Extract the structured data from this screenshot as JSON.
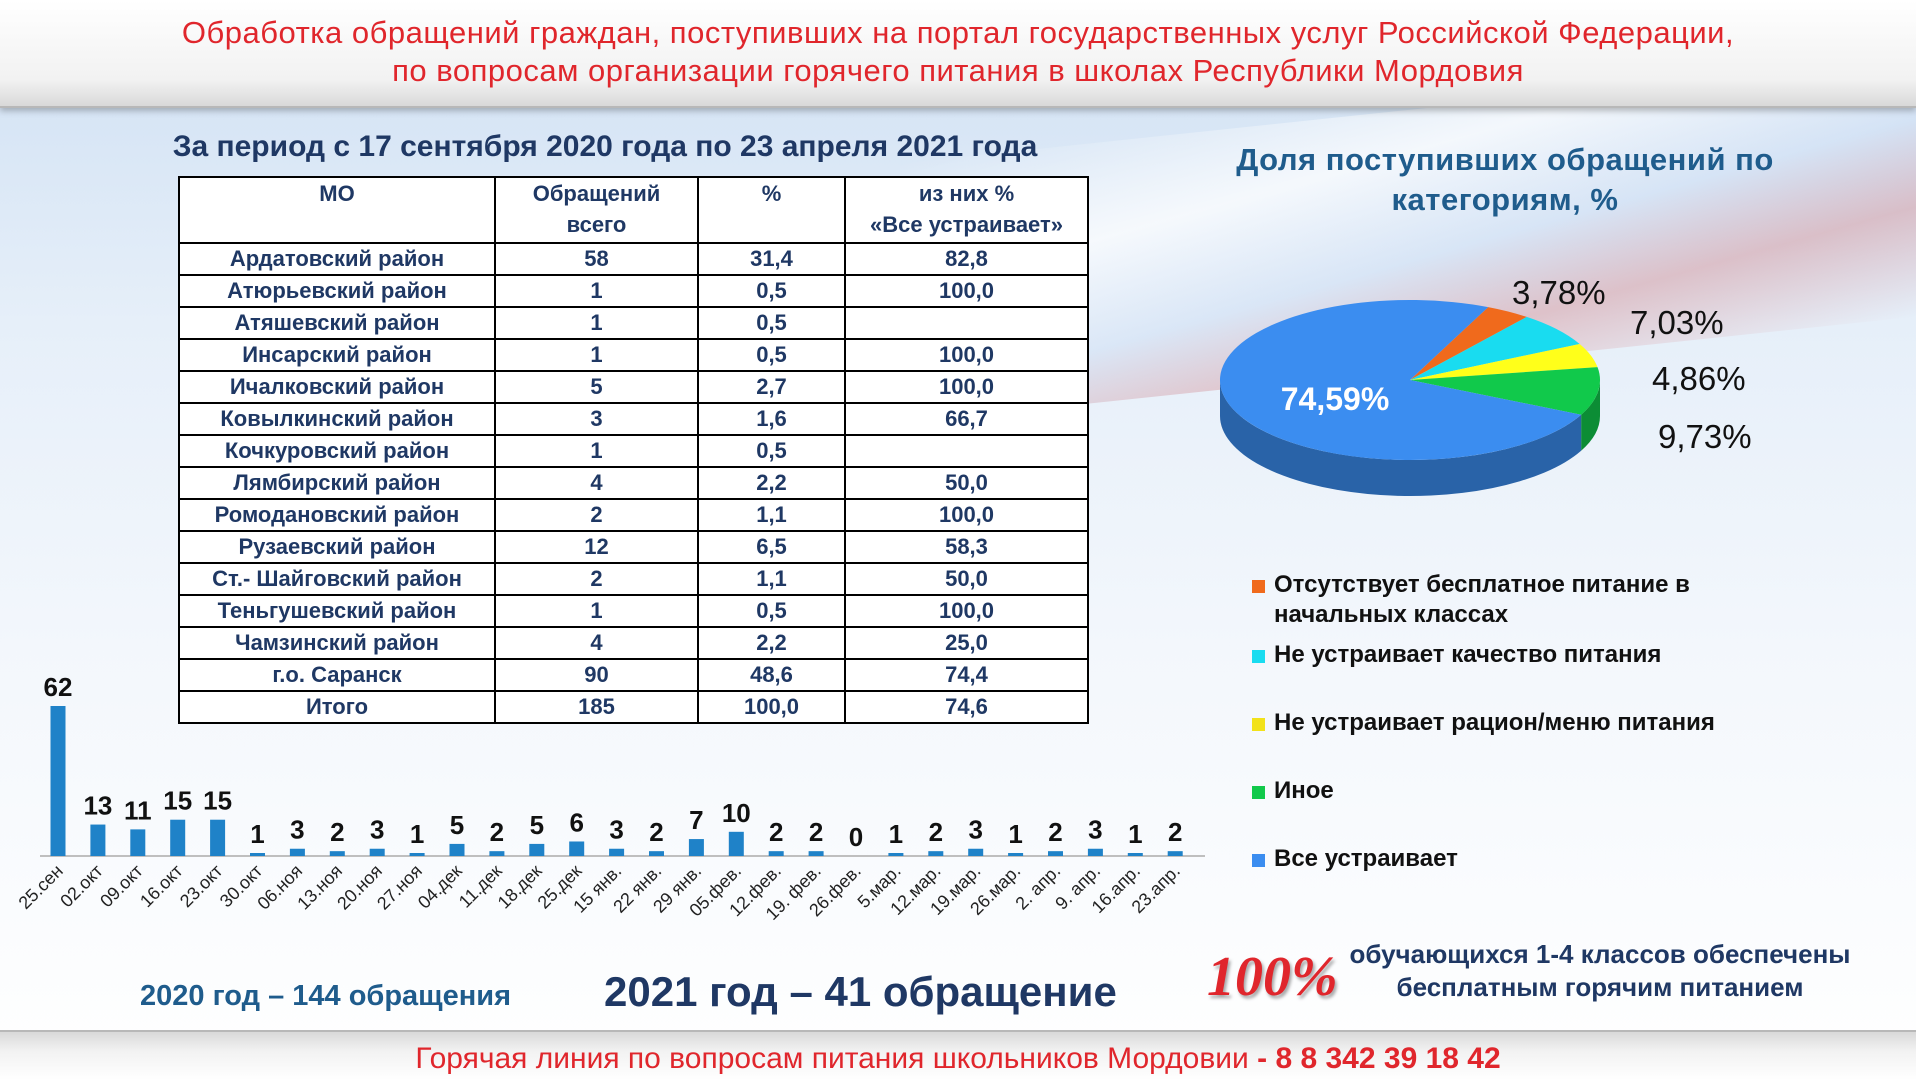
{
  "header": {
    "title_line1": "Обработка обращений граждан, поступивших на портал государственных услуг Российской Федерации,",
    "title_line2": "по вопросам организации горячего питания в школах Республики Мордовия"
  },
  "period": "За период с 17 сентября 2020 года по 23 апреля 2021 года",
  "table": {
    "headers": {
      "mo": "МО",
      "total_line1": "Обращений",
      "total_line2": "всего",
      "pct": "%",
      "ok_line1": "из них %",
      "ok_line2": "«Все устраивает»"
    },
    "rows": [
      {
        "mo": "Ардатовский район",
        "total": "58",
        "pct": "31,4",
        "ok": "82,8"
      },
      {
        "mo": "Атюрьевский район",
        "total": "1",
        "pct": "0,5",
        "ok": "100,0"
      },
      {
        "mo": "Атяшевский район",
        "total": "1",
        "pct": "0,5",
        "ok": ""
      },
      {
        "mo": "Инсарский район",
        "total": "1",
        "pct": "0,5",
        "ok": "100,0"
      },
      {
        "mo": "Ичалковский район",
        "total": "5",
        "pct": "2,7",
        "ok": "100,0"
      },
      {
        "mo": "Ковылкинский район",
        "total": "3",
        "pct": "1,6",
        "ok": "66,7"
      },
      {
        "mo": "Кочкуровский район",
        "total": "1",
        "pct": "0,5",
        "ok": ""
      },
      {
        "mo": "Лямбирский район",
        "total": "4",
        "pct": "2,2",
        "ok": "50,0"
      },
      {
        "mo": "Ромодановский район",
        "total": "2",
        "pct": "1,1",
        "ok": "100,0"
      },
      {
        "mo": "Рузаевский район",
        "total": "12",
        "pct": "6,5",
        "ok": "58,3"
      },
      {
        "mo": "Ст.- Шайговский район",
        "total": "2",
        "pct": "1,1",
        "ok": "50,0"
      },
      {
        "mo": "Теньгушевский район",
        "total": "1",
        "pct": "0,5",
        "ok": "100,0"
      },
      {
        "mo": "Чамзинский район",
        "total": "4",
        "pct": "2,2",
        "ok": "25,0"
      },
      {
        "mo": "г.о. Саранск",
        "total": "90",
        "pct": "48,6",
        "ok": "74,4"
      },
      {
        "mo": "Итого",
        "total": "185",
        "pct": "100,0",
        "ok": "74,6"
      }
    ]
  },
  "chart_data": [
    {
      "type": "pie",
      "title": "Доля поступивших обращений по категориям, %",
      "slices": [
        {
          "name": "Отсутствует бесплатное питание в начальных классах",
          "value": 3.78,
          "label": "3,78%",
          "color": "#f06a1c"
        },
        {
          "name": "Не устраивает качество питания",
          "value": 7.03,
          "label": "7,03%",
          "color": "#19dcf0"
        },
        {
          "name": "Не устраивает рацион/меню питания",
          "value": 4.86,
          "label": "4,86%",
          "color": "#ffff1a"
        },
        {
          "name": "Иное",
          "value": 9.73,
          "label": "9,73%",
          "color": "#11c94b"
        },
        {
          "name": "Все устраивает",
          "value": 74.59,
          "label": "74,59%",
          "color": "#3b8df0"
        }
      ],
      "legend_position": "bottom"
    },
    {
      "type": "bar",
      "categories": [
        "25.сен",
        "02.окт",
        "09.окт",
        "16.окт",
        "23.окт",
        "30.окт",
        "06.ноя",
        "13.ноя",
        "20.ноя",
        "27.ноя",
        "04.дек",
        "11.дек",
        "18.дек",
        "25.дек",
        "15 янв.",
        "22 янв.",
        "29 янв.",
        "05.фев.",
        "12.фев.",
        "19. фев.",
        "26.фев.",
        "5.мар.",
        "12.мар.",
        "19.мар.",
        "26.мар.",
        "2. апр.",
        "9. апр.",
        "16.апр.",
        "23.апр."
      ],
      "values": [
        62,
        13,
        11,
        15,
        15,
        1,
        3,
        2,
        3,
        1,
        5,
        2,
        5,
        6,
        3,
        2,
        7,
        10,
        2,
        2,
        0,
        1,
        2,
        3,
        1,
        2,
        3,
        1,
        2
      ],
      "color": "#1f82c8",
      "ylim": [
        0,
        62
      ]
    }
  ],
  "legend_header": "",
  "totals": {
    "y2020": "2020 год – 144 обращения",
    "y2021": "2021 год – 41 обращение"
  },
  "coverage": {
    "big": "100%",
    "line1": "обучающихся 1-4 классов обеспечены",
    "line2": "бесплатным горячим питанием"
  },
  "footer": {
    "hotline": "Горячая линия по вопросам питания школьников Мордовии",
    "phone": " - 8 8 342 39 18 42"
  }
}
